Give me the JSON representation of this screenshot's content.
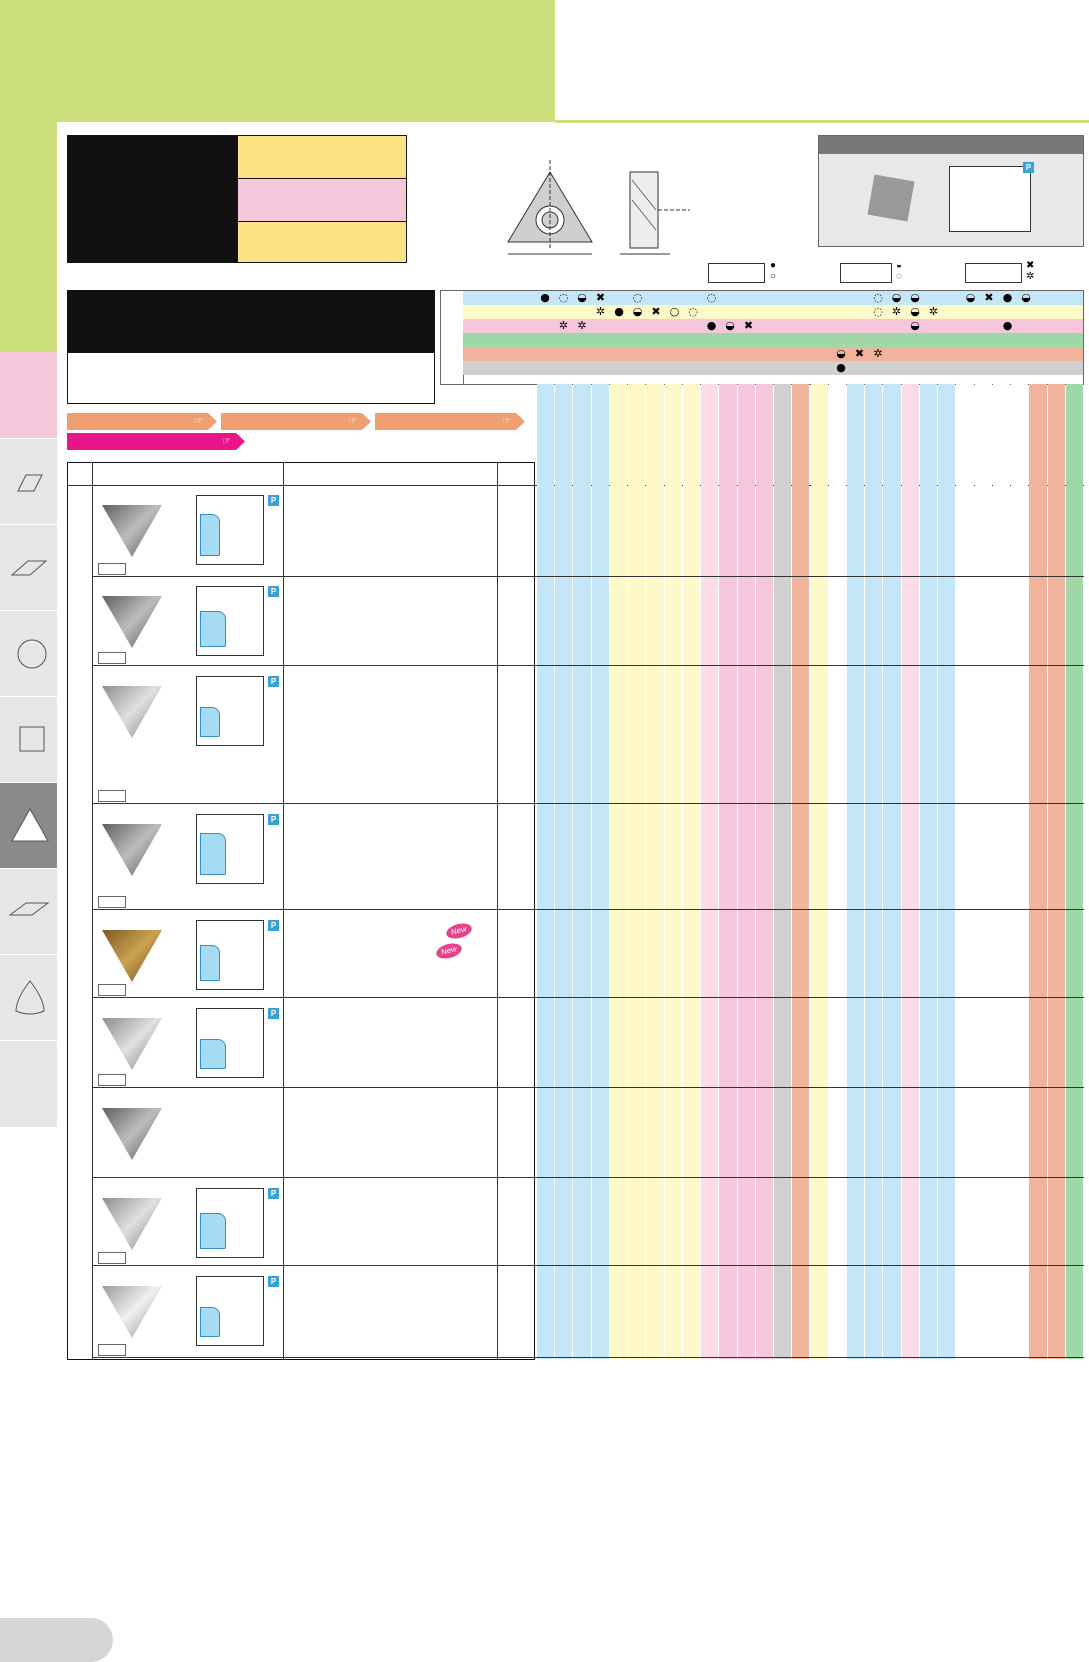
{
  "badges": {
    "p": "P",
    "new": "New"
  },
  "colors": {
    "header_green": "#cbe07a",
    "yellow": "#fde283",
    "pink": "#f6c7da",
    "blue": "#c5e6f7",
    "light_yellow": "#fff9c9",
    "light_pink": "#fbdbe6",
    "salmon": "#efb49b",
    "green": "#9fd7a6",
    "grey": "#d0d0d0",
    "orange_btn": "#f0a070",
    "magenta_btn": "#e8168a"
  },
  "side_tabs": [
    {
      "icon": "parallelogram-icon"
    },
    {
      "icon": "rhombus-icon"
    },
    {
      "icon": "circle-icon"
    },
    {
      "icon": "square-icon"
    },
    {
      "icon": "triangle-icon"
    },
    {
      "icon": "parallelogram-icon"
    },
    {
      "icon": "trigon-icon"
    }
  ],
  "legend_symbols": [
    {
      "top": "●",
      "bottom": "○"
    },
    {
      "top": "◒",
      "bottom": "◌"
    },
    {
      "top": "✖",
      "bottom": "✲"
    }
  ],
  "symbol_rows": [
    [
      "●",
      "◌",
      "◒",
      "✖",
      "",
      "◌",
      "",
      "",
      "",
      "◌",
      "",
      "",
      "",
      "",
      "",
      "",
      "",
      "",
      "◌",
      "◒",
      "◒",
      "",
      "",
      "◒",
      "✖",
      "●",
      "◒",
      "",
      "",
      "",
      "",
      "",
      "",
      "",
      "",
      "",
      ""
    ],
    [
      "",
      "",
      "",
      "✲",
      "●",
      "◒",
      "✖",
      "○",
      "◌",
      "",
      "",
      "",
      "",
      "",
      "",
      "",
      "",
      "",
      "◌",
      "✲",
      "◒",
      "✲",
      "",
      "",
      "",
      "",
      "",
      "",
      "",
      "",
      "",
      "",
      "",
      "",
      "",
      "",
      ""
    ],
    [
      "",
      "✲",
      "✲",
      "",
      "",
      "",
      "",
      "",
      "",
      "●",
      "◒",
      "✖",
      "",
      "",
      "",
      "",
      "",
      "",
      "",
      "",
      "◒",
      "",
      "",
      "",
      "",
      "●",
      "",
      "",
      "",
      "",
      "",
      "",
      "",
      "",
      "",
      "",
      ""
    ],
    [
      "",
      "",
      "",
      "",
      "",
      "",
      "",
      "",
      "",
      "",
      "",
      "",
      "",
      "",
      "",
      "",
      "",
      "",
      "",
      "",
      "",
      "",
      "",
      "",
      "",
      "",
      "",
      "",
      "",
      "",
      "",
      "",
      "",
      "",
      "",
      "",
      "◒"
    ],
    [
      "",
      "",
      "",
      "",
      "",
      "",
      "",
      "",
      "",
      "",
      "",
      "",
      "",
      "",
      "",
      "",
      "◒",
      "✖",
      "✲",
      "",
      "",
      "",
      "",
      "",
      "",
      "",
      "",
      "",
      "",
      "",
      "",
      "",
      "",
      "",
      "",
      "",
      ""
    ],
    [
      "",
      "",
      "",
      "",
      "",
      "",
      "",
      "",
      "",
      "",
      "",
      "",
      "",
      "",
      "",
      "",
      "●",
      "",
      "",
      "",
      "",
      "",
      "",
      "",
      "",
      "",
      "",
      "",
      "",
      "",
      "",
      "",
      "",
      "",
      "",
      "",
      ""
    ]
  ],
  "inserts": [
    {
      "new": false,
      "thumb_tone": "dark"
    },
    {
      "new": false,
      "thumb_tone": "dark"
    },
    {
      "new": false,
      "thumb_tone": "light"
    },
    {
      "new": false,
      "thumb_tone": "dark"
    },
    {
      "new": true,
      "thumb_tone": "gold"
    },
    {
      "new": false,
      "thumb_tone": "light"
    },
    {
      "new": false,
      "thumb_tone": "dark"
    },
    {
      "new": false,
      "thumb_tone": "light"
    },
    {
      "new": false,
      "thumb_tone": "silver"
    }
  ]
}
